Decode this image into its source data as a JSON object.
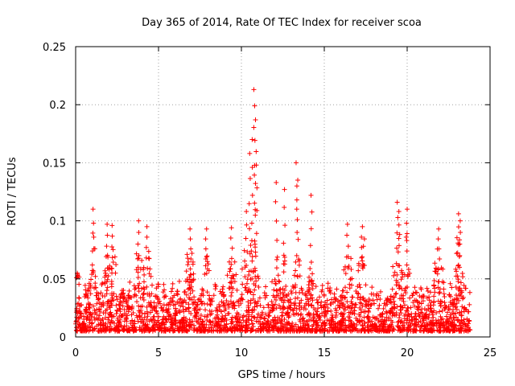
{
  "chart_data": {
    "type": "scatter",
    "title": "Day 365 of 2014, Rate Of TEC Index for receiver scoa",
    "xlabel": "GPS time / hours",
    "ylabel": "ROTI / TECUs",
    "xlim": [
      0,
      25
    ],
    "ylim": [
      0,
      0.25
    ],
    "x_ticks": [
      0,
      5,
      10,
      15,
      20,
      25
    ],
    "x_tick_labels": [
      "0",
      "5",
      "10",
      "15",
      "20",
      "25"
    ],
    "y_ticks": [
      0,
      0.05,
      0.1,
      0.15,
      0.2,
      0.25
    ],
    "y_tick_labels": [
      "0",
      "0.05",
      "0.1",
      "0.15",
      "0.2",
      "0.25"
    ],
    "grid": true,
    "marker": "+",
    "marker_color": "#ff0000",
    "series": [
      {
        "name": "ROTI",
        "x_range": [
          0.0,
          23.8
        ],
        "baseline_min": 0.005,
        "typical_max": 0.08,
        "note": "dense band of thousands of samples; representative peaks listed",
        "peaks": [
          {
            "x": 0.1,
            "y": 0.055
          },
          {
            "x": 1.05,
            "y": 0.11
          },
          {
            "x": 1.9,
            "y": 0.097
          },
          {
            "x": 2.2,
            "y": 0.096
          },
          {
            "x": 3.8,
            "y": 0.1
          },
          {
            "x": 4.3,
            "y": 0.095
          },
          {
            "x": 6.9,
            "y": 0.093
          },
          {
            "x": 7.9,
            "y": 0.093
          },
          {
            "x": 9.4,
            "y": 0.094
          },
          {
            "x": 10.3,
            "y": 0.108
          },
          {
            "x": 10.5,
            "y": 0.158
          },
          {
            "x": 10.65,
            "y": 0.17
          },
          {
            "x": 10.75,
            "y": 0.213
          },
          {
            "x": 10.8,
            "y": 0.199
          },
          {
            "x": 10.85,
            "y": 0.187
          },
          {
            "x": 10.9,
            "y": 0.148
          },
          {
            "x": 12.1,
            "y": 0.133
          },
          {
            "x": 12.6,
            "y": 0.127
          },
          {
            "x": 13.3,
            "y": 0.15
          },
          {
            "x": 13.4,
            "y": 0.135
          },
          {
            "x": 14.2,
            "y": 0.122
          },
          {
            "x": 16.4,
            "y": 0.097
          },
          {
            "x": 17.3,
            "y": 0.095
          },
          {
            "x": 19.4,
            "y": 0.116
          },
          {
            "x": 19.5,
            "y": 0.108
          },
          {
            "x": 20.0,
            "y": 0.11
          },
          {
            "x": 21.9,
            "y": 0.093
          },
          {
            "x": 23.1,
            "y": 0.106
          },
          {
            "x": 23.2,
            "y": 0.1
          }
        ]
      }
    ]
  }
}
